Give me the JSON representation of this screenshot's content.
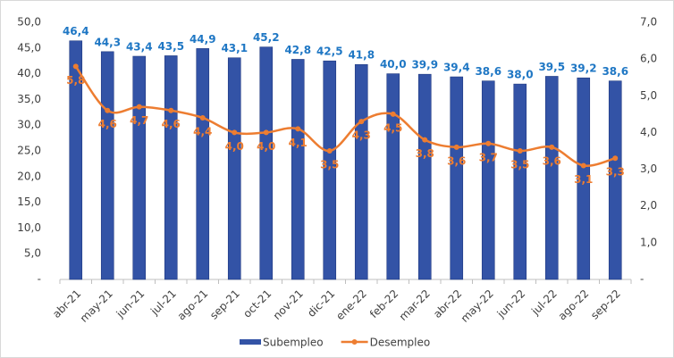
{
  "chart_data": {
    "type": "bar-line",
    "categories": [
      "abr-21",
      "may-21",
      "jun-21",
      "jul-21",
      "ago-21",
      "sep-21",
      "oct-21",
      "nov-21",
      "dic-21",
      "ene-22",
      "feb-22",
      "mar-22",
      "abr-22",
      "may-22",
      "jun-22",
      "jul-22",
      "ago-22",
      "sep-22"
    ],
    "series": [
      {
        "name": "Subempleo",
        "type": "bar",
        "color": "#3353a6",
        "values": [
          46.4,
          44.3,
          43.4,
          43.5,
          44.9,
          43.1,
          45.2,
          42.8,
          42.5,
          41.8,
          40.0,
          39.9,
          39.4,
          38.6,
          38.0,
          39.5,
          39.2,
          38.6
        ],
        "value_labels": [
          "46,4",
          "44,3",
          "43,4",
          "43,5",
          "44,9",
          "43,1",
          "45,2",
          "42,8",
          "42,5",
          "41,8",
          "40,0",
          "39,9",
          "39,4",
          "38,6",
          "38,0",
          "39,5",
          "39,2",
          "38,6"
        ]
      },
      {
        "name": "Desempleo",
        "type": "line",
        "axis": "y2",
        "color": "#ed7d31",
        "values": [
          5.8,
          4.6,
          4.7,
          4.6,
          4.4,
          4.0,
          4.0,
          4.1,
          3.5,
          4.3,
          4.5,
          3.8,
          3.6,
          3.7,
          3.5,
          3.6,
          3.1,
          3.3
        ],
        "value_labels": [
          "5,8",
          "4,6",
          "4,7",
          "4,6",
          "4,4",
          "4,0",
          "4,0",
          "4,1",
          "3,5",
          "4,3",
          "4,5",
          "3,8",
          "3,6",
          "3,7",
          "3,5",
          "3,6",
          "3,1",
          "3,3"
        ]
      }
    ],
    "ylim": [
      0,
      50
    ],
    "yticks": [
      {
        "value": 0,
        "label": "-"
      },
      {
        "value": 5,
        "label": "5,0"
      },
      {
        "value": 10,
        "label": "10,0"
      },
      {
        "value": 15,
        "label": "15,0"
      },
      {
        "value": 20,
        "label": "20,0"
      },
      {
        "value": 25,
        "label": "25,0"
      },
      {
        "value": 30,
        "label": "30,0"
      },
      {
        "value": 35,
        "label": "35,0"
      },
      {
        "value": 40,
        "label": "40,0"
      },
      {
        "value": 45,
        "label": "45,0"
      },
      {
        "value": 50,
        "label": "50,0"
      }
    ],
    "y2lim": [
      0,
      7
    ],
    "y2ticks": [
      {
        "value": 0,
        "label": "-"
      },
      {
        "value": 1,
        "label": "1,0"
      },
      {
        "value": 2,
        "label": "2,0"
      },
      {
        "value": 3,
        "label": "3,0"
      },
      {
        "value": 4,
        "label": "4,0"
      },
      {
        "value": 5,
        "label": "5,0"
      },
      {
        "value": 6,
        "label": "6,0"
      },
      {
        "value": 7,
        "label": "7,0"
      }
    ],
    "legend": "bottom",
    "grid": false
  }
}
